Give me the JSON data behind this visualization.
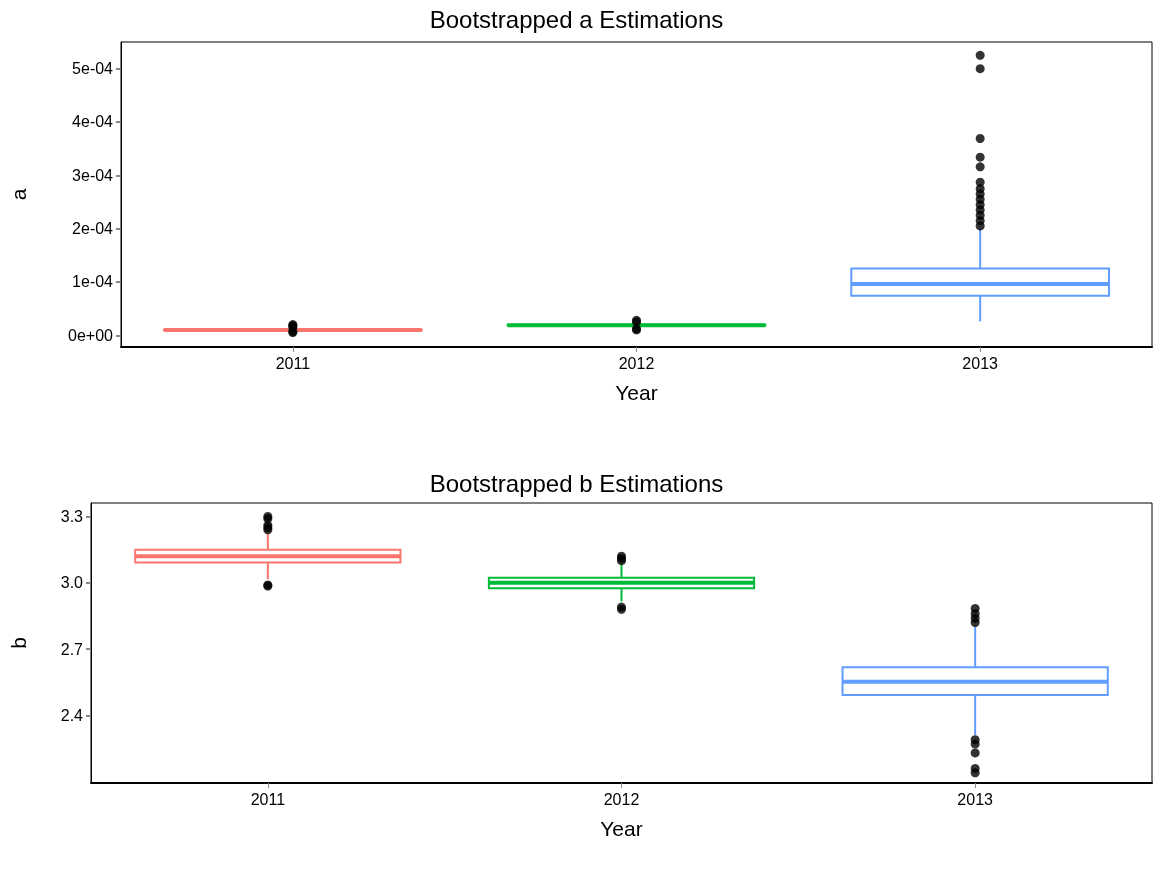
{
  "chart_data": [
    {
      "type": "box",
      "title": "Bootstrapped a Estimations",
      "xlabel": "Year",
      "ylabel": "a",
      "categories": [
        "2011",
        "2012",
        "2013"
      ],
      "colors": [
        "#f8766d",
        "#00ba38",
        "#619cff"
      ],
      "boxes": [
        {
          "low": 8e-06,
          "q1": 9.5e-06,
          "median": 1e-05,
          "q3": 1.05e-05,
          "high": 1.2e-05,
          "outliers": [
            5e-06,
            7e-06,
            1.5e-05,
            1.8e-05,
            2e-05
          ]
        },
        {
          "low": 1.6e-05,
          "q1": 1.85e-05,
          "median": 1.9e-05,
          "q3": 1.95e-05,
          "high": 2.2e-05,
          "outliers": [
            1e-05,
            1.2e-05,
            2.5e-05,
            2.8e-05
          ]
        },
        {
          "low": 2.6e-05,
          "q1": 7.4e-05,
          "median": 9.6e-05,
          "q3": 0.000125,
          "high": 0.0002,
          "outliers": [
            0.000525,
            0.0005,
            0.000369,
            0.000334,
            0.000316,
            0.000287,
            0.000275,
            0.000265,
            0.000255,
            0.000245,
            0.000235,
            0.000225,
            0.000215,
            0.000205
          ]
        }
      ],
      "ylim": [
        -2.2e-05,
        0.00055
      ],
      "yticks": [
        {
          "value": 0,
          "label": "0e+00"
        },
        {
          "value": 0.0001,
          "label": "1e-04"
        },
        {
          "value": 0.0002,
          "label": "2e-04"
        },
        {
          "value": 0.0003,
          "label": "3e-04"
        },
        {
          "value": 0.0004,
          "label": "4e-04"
        },
        {
          "value": 0.0005,
          "label": "5e-04"
        }
      ],
      "grid": false
    },
    {
      "type": "box",
      "title": "Bootstrapped b Estimations",
      "xlabel": "Year",
      "ylabel": "b",
      "categories": [
        "2011",
        "2012",
        "2013"
      ],
      "colors": [
        "#f8766d",
        "#00ba38",
        "#619cff"
      ],
      "boxes": [
        {
          "low": 3.017,
          "q1": 3.092,
          "median": 3.12,
          "q3": 3.149,
          "high": 3.22,
          "outliers": [
            3.3,
            3.29,
            3.26,
            3.25,
            3.24,
            2.99,
            2.985
          ]
        },
        {
          "low": 2.916,
          "q1": 2.975,
          "median": 3.0,
          "q3": 3.023,
          "high": 3.086,
          "outliers": [
            3.12,
            3.11,
            3.1,
            2.89,
            2.88
          ]
        },
        {
          "low": 2.31,
          "q1": 2.492,
          "median": 2.552,
          "q3": 2.618,
          "high": 2.8,
          "outliers": [
            2.884,
            2.86,
            2.84,
            2.82,
            2.29,
            2.27,
            2.23,
            2.16,
            2.14
          ]
        }
      ],
      "ylim": [
        2.094,
        3.361
      ],
      "yticks": [
        {
          "value": 2.4,
          "label": "2.4"
        },
        {
          "value": 2.7,
          "label": "2.7"
        },
        {
          "value": 3.0,
          "label": "3.0"
        },
        {
          "value": 3.3,
          "label": "3.3"
        }
      ],
      "grid": false
    }
  ]
}
